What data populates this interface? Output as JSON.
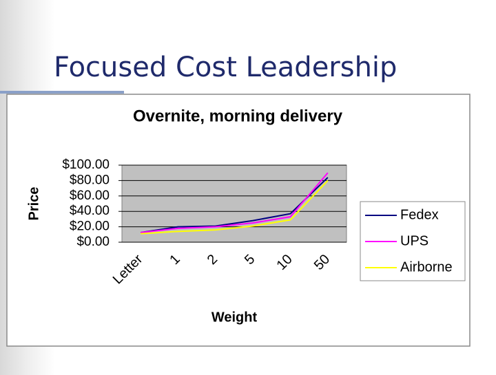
{
  "slide_title": "Focused Cost Leadership",
  "chart_data": {
    "type": "line",
    "title": "Overnite, morning delivery",
    "x_label": "Weight",
    "y_label": "Price",
    "categories": [
      "Letter",
      "1",
      "2",
      "5",
      "10",
      "50"
    ],
    "series": [
      {
        "name": "Fedex",
        "color": "#000080",
        "values": [
          12.5,
          20,
          21,
          28,
          37,
          84
        ]
      },
      {
        "name": "UPS",
        "color": "#ff00ff",
        "values": [
          12.5,
          18,
          20,
          25,
          33,
          90
        ]
      },
      {
        "name": "Airborne",
        "color": "#ffff00",
        "values": [
          11,
          14,
          16,
          21,
          29,
          80
        ]
      }
    ],
    "ylim": [
      0,
      100
    ],
    "yticks": [
      {
        "value": 0,
        "label": "$0.00"
      },
      {
        "value": 20,
        "label": "$20.00"
      },
      {
        "value": 40,
        "label": "$40.00"
      },
      {
        "value": 60,
        "label": "$60.00"
      },
      {
        "value": 80,
        "label": "$80.00"
      },
      {
        "value": 100,
        "label": "$100.00"
      }
    ],
    "grid": true,
    "plot_background": "#c0c0c0",
    "legend": "right"
  }
}
